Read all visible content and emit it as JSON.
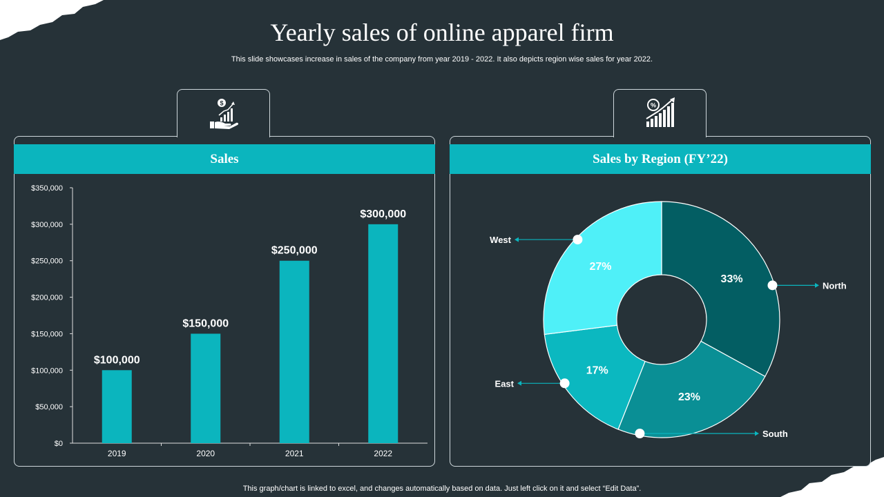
{
  "title": "Yearly sales of online apparel firm",
  "subtitle": "This slide showcases increase in sales of the company from year 2019 - 2022. It also depicts region wise sales for year 2022.",
  "footer": "This graph/chart is linked to excel, and changes automatically based on data. Just left click on it and select “Edit Data”.",
  "icons": {
    "left_tab": "money-hand-growth-icon",
    "right_tab": "percent-growth-chart-icon"
  },
  "colors": {
    "background": "#263238",
    "accent": "#0bb5be",
    "north": "#035e63",
    "south": "#0a8f95",
    "east": "#0bb8c0",
    "west": "#4ff0f8"
  },
  "chart_data": [
    {
      "type": "bar",
      "title": "Sales",
      "categories": [
        "2019",
        "2020",
        "2021",
        "2022"
      ],
      "values": [
        100000,
        150000,
        250000,
        300000
      ],
      "value_labels": [
        "$100,000",
        "$150,000",
        "$250,000",
        "$300,000"
      ],
      "ylim": [
        0,
        350000
      ],
      "yticks": [
        "$0",
        "$50,000",
        "$100,000",
        "$150,000",
        "$200,000",
        "$250,000",
        "$300,000",
        "$350,000"
      ],
      "grid": false
    },
    {
      "type": "pie",
      "donut": true,
      "title": "Sales by Region (FY’22)",
      "slices": [
        {
          "label": "North",
          "value": 33,
          "display": "33%"
        },
        {
          "label": "South",
          "value": 23,
          "display": "23%"
        },
        {
          "label": "East",
          "value": 17,
          "display": "17%"
        },
        {
          "label": "West",
          "value": 27,
          "display": "27%"
        }
      ]
    }
  ]
}
